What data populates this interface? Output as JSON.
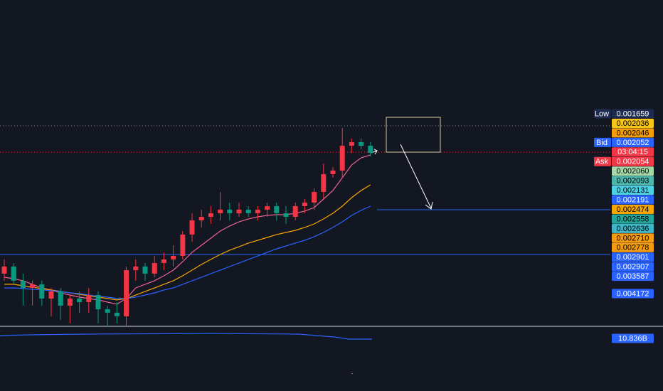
{
  "chart_data": {
    "type": "candlestick",
    "inverted": true,
    "ylim": [
      0.000785,
      0.003504
    ],
    "up_color": "#089981",
    "down_color": "#f23645",
    "candles": {
      "open": [
        0.00306,
        0.003001,
        0.003119,
        0.003179,
        0.003149,
        0.003267,
        0.003208,
        0.003326,
        0.003267,
        0.003297,
        0.003238,
        0.003356,
        0.003385,
        0.003415,
        0.003031,
        0.003001,
        0.00306,
        0.002972,
        0.002942,
        0.002913,
        0.002735,
        0.002617,
        0.002588,
        0.002558,
        0.002528,
        0.002558,
        0.002528,
        0.002558,
        0.002528,
        0.002499,
        0.002558,
        0.002588,
        0.002499,
        0.002469,
        0.002381,
        0.002233,
        0.002203,
        0.001997,
        0.001967,
        0.001997
      ],
      "high": [
        0.003119,
        0.003149,
        0.003326,
        0.003326,
        0.003326,
        0.003415,
        0.003445,
        0.003474,
        0.003385,
        0.003385,
        0.003474,
        0.003504,
        0.003474,
        0.003504,
        0.003119,
        0.003119,
        0.00309,
        0.003031,
        0.003001,
        0.002942,
        0.002794,
        0.002676,
        0.002647,
        0.002617,
        0.002617,
        0.002588,
        0.002588,
        0.002617,
        0.002588,
        0.002617,
        0.002647,
        0.002617,
        0.002558,
        0.002528,
        0.00244,
        0.002263,
        0.002263,
        0.002056,
        0.002026,
        0.002085
      ],
      "low": [
        0.002942,
        0.002972,
        0.00306,
        0.003119,
        0.003119,
        0.003179,
        0.003179,
        0.003238,
        0.003208,
        0.003179,
        0.003208,
        0.003326,
        0.003297,
        0.003001,
        0.002942,
        0.002972,
        0.002913,
        0.002883,
        0.002824,
        0.002706,
        0.002558,
        0.002528,
        0.002499,
        0.002381,
        0.002469,
        0.002469,
        0.002499,
        0.002499,
        0.002469,
        0.002469,
        0.002499,
        0.002469,
        0.00244,
        0.002351,
        0.002144,
        0.002174,
        0.001849,
        0.001937,
        0.001937,
        0.001967
      ],
      "close": [
        0.003001,
        0.003119,
        0.003179,
        0.003149,
        0.003267,
        0.003208,
        0.003326,
        0.003267,
        0.003297,
        0.003238,
        0.003356,
        0.003385,
        0.003415,
        0.003031,
        0.003001,
        0.00306,
        0.002972,
        0.002942,
        0.002913,
        0.002735,
        0.002617,
        0.002588,
        0.002558,
        0.002528,
        0.002558,
        0.002528,
        0.002558,
        0.002528,
        0.002499,
        0.002558,
        0.002588,
        0.002499,
        0.002469,
        0.002381,
        0.002233,
        0.002203,
        0.001997,
        0.001967,
        0.001997,
        0.002056
      ]
    },
    "series": [
      {
        "color": "#f06292",
        "values": [
          0.00309,
          0.003102,
          0.003119,
          0.003149,
          0.003179,
          0.003196,
          0.00322,
          0.003238,
          0.003255,
          0.003267,
          0.003279,
          0.003297,
          0.003314,
          0.003267,
          0.003179,
          0.003149,
          0.003119,
          0.003078,
          0.003031,
          0.00296,
          0.002883,
          0.002824,
          0.002765,
          0.002706,
          0.002664,
          0.002629,
          0.002605,
          0.002588,
          0.002576,
          0.00257,
          0.00257,
          0.002558,
          0.00254,
          0.002511,
          0.00244,
          0.002369,
          0.002263,
          0.002156,
          0.002097,
          0.002073
        ]
      },
      {
        "color": "#f7a600",
        "values": [
          0.003149,
          0.003149,
          0.003161,
          0.003173,
          0.003184,
          0.003196,
          0.003208,
          0.00322,
          0.003232,
          0.003244,
          0.003255,
          0.003267,
          0.003279,
          0.003267,
          0.003238,
          0.003208,
          0.003179,
          0.003149,
          0.003119,
          0.003078,
          0.003031,
          0.002984,
          0.002942,
          0.002901,
          0.002865,
          0.002836,
          0.002806,
          0.002783,
          0.002759,
          0.002735,
          0.002718,
          0.0027,
          0.002676,
          0.002647,
          0.002605,
          0.002558,
          0.002499,
          0.002428,
          0.002369,
          0.002322
        ]
      },
      {
        "color": "#2962ff",
        "values": [
          0.003179,
          0.003179,
          0.003184,
          0.00319,
          0.003196,
          0.003202,
          0.003208,
          0.00322,
          0.003226,
          0.003238,
          0.003249,
          0.003255,
          0.003267,
          0.003267,
          0.003255,
          0.003238,
          0.00322,
          0.003196,
          0.003179,
          0.003149,
          0.003119,
          0.00309,
          0.00306,
          0.003031,
          0.003001,
          0.002972,
          0.002942,
          0.002913,
          0.002883,
          0.002854,
          0.00283,
          0.002806,
          0.002783,
          0.002753,
          0.002718,
          0.002676,
          0.002629,
          0.002576,
          0.002534,
          0.002499
        ]
      }
    ],
    "price_labels": [
      {
        "tag": "Low",
        "text": "0.001659",
        "color": "#1c2b4f",
        "text_color": "#ffffff"
      },
      {
        "text": "0.002036",
        "color": "#f5c518",
        "text_color": "#000000"
      },
      {
        "text": "0.002046",
        "color": "#f59e0b",
        "text_color": "#000000"
      },
      {
        "tag": "Bid",
        "text": "0.002052",
        "color": "#2962ff",
        "text_color": "#ffffff"
      },
      {
        "text": "03:04:15",
        "color": "#f23645",
        "text_color": "#ffffff"
      },
      {
        "tag": "Ask",
        "text": "0.002054",
        "color": "#f23645",
        "text_color": "#ffffff"
      },
      {
        "text": "0.002060",
        "color": "#a5d6a7",
        "text_color": "#000000"
      },
      {
        "text": "0.002093",
        "color": "#4db6ac",
        "text_color": "#000000"
      },
      {
        "text": "0.002131",
        "color": "#4dd0e1",
        "text_color": "#000000"
      },
      {
        "text": "0.002191",
        "color": "#2962ff",
        "text_color": "#ffffff"
      },
      {
        "text": "0.002474",
        "color": "#f7a600",
        "text_color": "#000000"
      },
      {
        "text": "0.002558",
        "color": "#26a69a",
        "text_color": "#000000"
      },
      {
        "text": "0.002636",
        "color": "#3fb6c8",
        "text_color": "#000000"
      },
      {
        "text": "0.002710",
        "color": "#f39c12",
        "text_color": "#000000"
      },
      {
        "text": "0.002778",
        "color": "#f39c12",
        "text_color": "#000000"
      },
      {
        "text": "0.002901",
        "color": "#2962ff",
        "text_color": "#ffffff"
      },
      {
        "text": "0.002907",
        "color": "#2962ff",
        "text_color": "#ffffff"
      },
      {
        "text": "0.003587",
        "color": "#2962ff",
        "text_color": "#ffffff"
      },
      {
        "text": "0.004172",
        "color": "#2962ff",
        "text_color": "#ffffff"
      }
    ],
    "volume_label": {
      "text": "10.836B",
      "color": "#2962ff",
      "text_color": "#ffffff"
    }
  }
}
